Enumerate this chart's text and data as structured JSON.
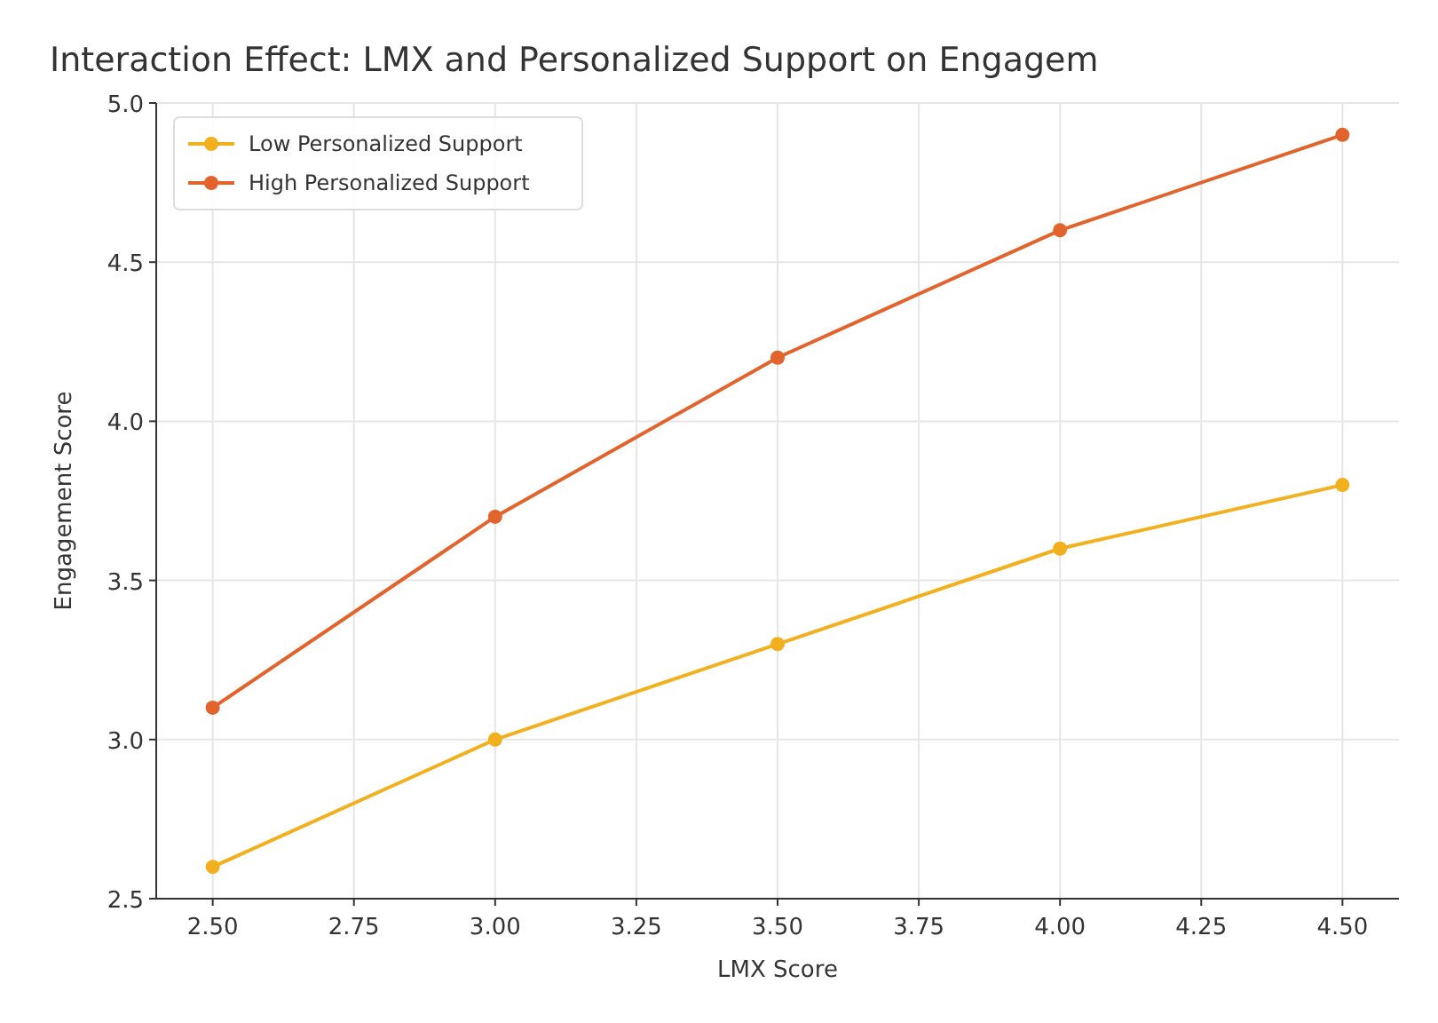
{
  "chart_data": {
    "type": "line",
    "title": "Interaction Effect: LMX and Personalized Support on Engagem",
    "xlabel": "LMX Score",
    "ylabel": "Engagement Score",
    "x": [
      2.5,
      3.0,
      3.5,
      4.0,
      4.5
    ],
    "series": [
      {
        "name": "Low Personalized Support",
        "color": "#f2b01e",
        "values": [
          2.6,
          3.0,
          3.3,
          3.6,
          3.8
        ]
      },
      {
        "name": "High Personalized Support",
        "color": "#e2632b",
        "values": [
          3.1,
          3.7,
          4.2,
          4.6,
          4.9
        ]
      }
    ],
    "xlim": [
      2.4,
      4.6
    ],
    "xticks": [
      {
        "value": 2.5,
        "label": "2.50"
      },
      {
        "value": 2.75,
        "label": "2.75"
      },
      {
        "value": 3.0,
        "label": "3.00"
      },
      {
        "value": 3.25,
        "label": "3.25"
      },
      {
        "value": 3.5,
        "label": "3.50"
      },
      {
        "value": 3.75,
        "label": "3.75"
      },
      {
        "value": 4.0,
        "label": "4.00"
      },
      {
        "value": 4.25,
        "label": "4.25"
      },
      {
        "value": 4.5,
        "label": "4.50"
      }
    ],
    "ylim": [
      2.5,
      5.0
    ],
    "yticks": [
      {
        "value": 2.5,
        "label": "2.5"
      },
      {
        "value": 3.0,
        "label": "3.0"
      },
      {
        "value": 3.5,
        "label": "3.5"
      },
      {
        "value": 4.0,
        "label": "4.0"
      },
      {
        "value": 4.5,
        "label": "4.5"
      },
      {
        "value": 5.0,
        "label": "5.0"
      }
    ],
    "grid": true,
    "legend": "top left",
    "marker": "circle",
    "line_style": "solid"
  }
}
